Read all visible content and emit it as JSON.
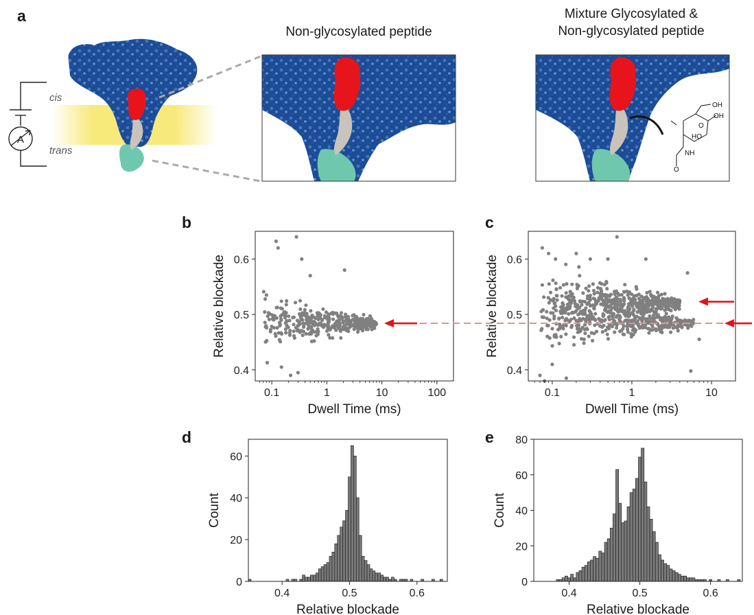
{
  "panel_a": {
    "letter": "a",
    "title_left": "Non-glycosylated peptide",
    "title_right_line1": "Mixture Glycosylated &",
    "title_right_line2": "Non-glycosylated peptide",
    "cis_label": "cis",
    "trans_label": "trans",
    "ammeter_label": "A",
    "sugar_labels": [
      "OH",
      "OH",
      "HO",
      "NH",
      "O",
      "O"
    ]
  },
  "colors": {
    "pore_dark": "#1d4b96",
    "pore_light": "#5d9ad0",
    "peptide": "#e8141c",
    "linker": "#c9c3bc",
    "tail": "#6fc8ae",
    "membrane": "#f7e564",
    "points": "#808080",
    "arrow": "#e0141a",
    "bars": "#7a7a7a"
  },
  "chart_data": [
    {
      "id": "b",
      "type": "scatter",
      "letter": "b",
      "xlabel": "Dwell Time (ms)",
      "ylabel": "Relative blockade",
      "xscale": "log",
      "xlim": [
        0.05,
        200
      ],
      "ylim": [
        0.38,
        0.65
      ],
      "xticks": [
        0.1,
        1,
        10,
        100
      ],
      "xtick_labels": [
        "0.1",
        "1",
        "10",
        "100"
      ],
      "yticks": [
        0.4,
        0.5,
        0.6
      ],
      "ytick_labels": [
        "0.4",
        "0.5",
        "0.6"
      ],
      "clusters": [
        {
          "x_range": [
            0.07,
            8
          ],
          "center": 0.484,
          "spread_start": 0.035,
          "spread_end": 0.006,
          "count": 420
        }
      ],
      "outliers": [
        [
          0.12,
          0.632
        ],
        [
          0.13,
          0.62
        ],
        [
          0.28,
          0.64
        ],
        [
          0.35,
          0.6
        ],
        [
          0.5,
          0.57
        ],
        [
          2.1,
          0.58
        ],
        [
          0.08,
          0.535
        ],
        [
          0.22,
          0.39
        ],
        [
          0.3,
          0.395
        ],
        [
          0.15,
          0.405
        ]
      ],
      "arrows": [
        {
          "y": 0.484
        }
      ],
      "reference_line": {
        "y": 0.484
      }
    },
    {
      "id": "c",
      "type": "scatter",
      "letter": "c",
      "xlabel": "Dwell Time (ms)",
      "ylabel": "Relative blockade",
      "xscale": "log",
      "xlim": [
        0.05,
        20
      ],
      "ylim": [
        0.38,
        0.65
      ],
      "xticks": [
        0.1,
        1,
        10
      ],
      "xtick_labels": [
        "0.1",
        "1",
        "10"
      ],
      "yticks": [
        0.4,
        0.5,
        0.6
      ],
      "ytick_labels": [
        "0.4",
        "0.5",
        "0.6"
      ],
      "clusters": [
        {
          "x_range": [
            0.07,
            4
          ],
          "center": 0.52,
          "spread_start": 0.045,
          "spread_end": 0.008,
          "count": 520
        },
        {
          "x_range": [
            0.07,
            6
          ],
          "center": 0.484,
          "spread_start": 0.04,
          "spread_end": 0.005,
          "count": 360
        }
      ],
      "outliers": [
        [
          0.075,
          0.62
        ],
        [
          0.09,
          0.61
        ],
        [
          0.11,
          0.6
        ],
        [
          0.2,
          0.61
        ],
        [
          0.3,
          0.6
        ],
        [
          0.65,
          0.64
        ],
        [
          0.5,
          0.6
        ],
        [
          1.5,
          0.6
        ],
        [
          5,
          0.575
        ],
        [
          0.08,
          0.38
        ],
        [
          0.07,
          0.39
        ],
        [
          0.15,
          0.385
        ],
        [
          5.5,
          0.398
        ],
        [
          7,
          0.455
        ],
        [
          0.1,
          0.41
        ]
      ],
      "arrows": [
        {
          "y": 0.523
        },
        {
          "y": 0.484
        }
      ],
      "reference_line": {
        "y": 0.484
      }
    },
    {
      "id": "d",
      "type": "bar",
      "letter": "d",
      "xlabel": "Relative blockade",
      "ylabel": "Count",
      "xlim": [
        0.35,
        0.645
      ],
      "ylim": [
        0,
        68
      ],
      "xticks": [
        0.4,
        0.5,
        0.6
      ],
      "xtick_labels": [
        "0.4",
        "0.5",
        "0.6"
      ],
      "yticks": [
        0,
        20,
        40,
        60
      ],
      "ytick_labels": [
        "0",
        "20",
        "40",
        "60"
      ],
      "bin_width": 0.004,
      "bin_start": 0.35,
      "values": [
        1,
        0,
        0,
        0,
        0,
        0,
        0,
        0,
        0,
        0,
        0,
        0,
        0,
        0,
        1,
        0,
        1,
        1,
        0,
        1,
        3,
        2,
        2,
        3,
        3,
        4,
        6,
        7,
        8,
        9,
        12,
        14,
        18,
        22,
        26,
        29,
        34,
        50,
        65,
        60,
        40,
        22,
        12,
        10,
        8,
        6,
        5,
        4,
        4,
        3,
        2,
        2,
        1,
        2,
        1,
        0,
        1,
        1,
        1,
        0,
        1,
        0,
        0,
        0,
        1,
        0,
        0,
        0,
        1,
        0,
        0,
        1,
        0,
        0
      ]
    },
    {
      "id": "e",
      "type": "bar",
      "letter": "e",
      "xlabel": "Relative blockade",
      "ylabel": "Count",
      "xlim": [
        0.35,
        0.645
      ],
      "ylim": [
        0,
        80
      ],
      "xticks": [
        0.4,
        0.5,
        0.6
      ],
      "xtick_labels": [
        "0.4",
        "0.5",
        "0.6"
      ],
      "yticks": [
        0,
        20,
        40,
        60,
        80
      ],
      "ytick_labels": [
        "0",
        "20",
        "40",
        "60",
        "80"
      ],
      "bin_width": 0.004,
      "bin_start": 0.35,
      "values": [
        0,
        0,
        0,
        0,
        0,
        0,
        0,
        0,
        1,
        1,
        2,
        3,
        2,
        4,
        2,
        5,
        6,
        8,
        9,
        11,
        12,
        14,
        13,
        17,
        16,
        22,
        24,
        30,
        38,
        63,
        44,
        33,
        34,
        42,
        50,
        52,
        58,
        70,
        75,
        56,
        42,
        35,
        28,
        22,
        15,
        12,
        10,
        9,
        7,
        6,
        5,
        4,
        3,
        3,
        2,
        2,
        2,
        1,
        1,
        1,
        1,
        0,
        1,
        0,
        0,
        1,
        0,
        0,
        1,
        0,
        0,
        0,
        1,
        0
      ]
    }
  ]
}
